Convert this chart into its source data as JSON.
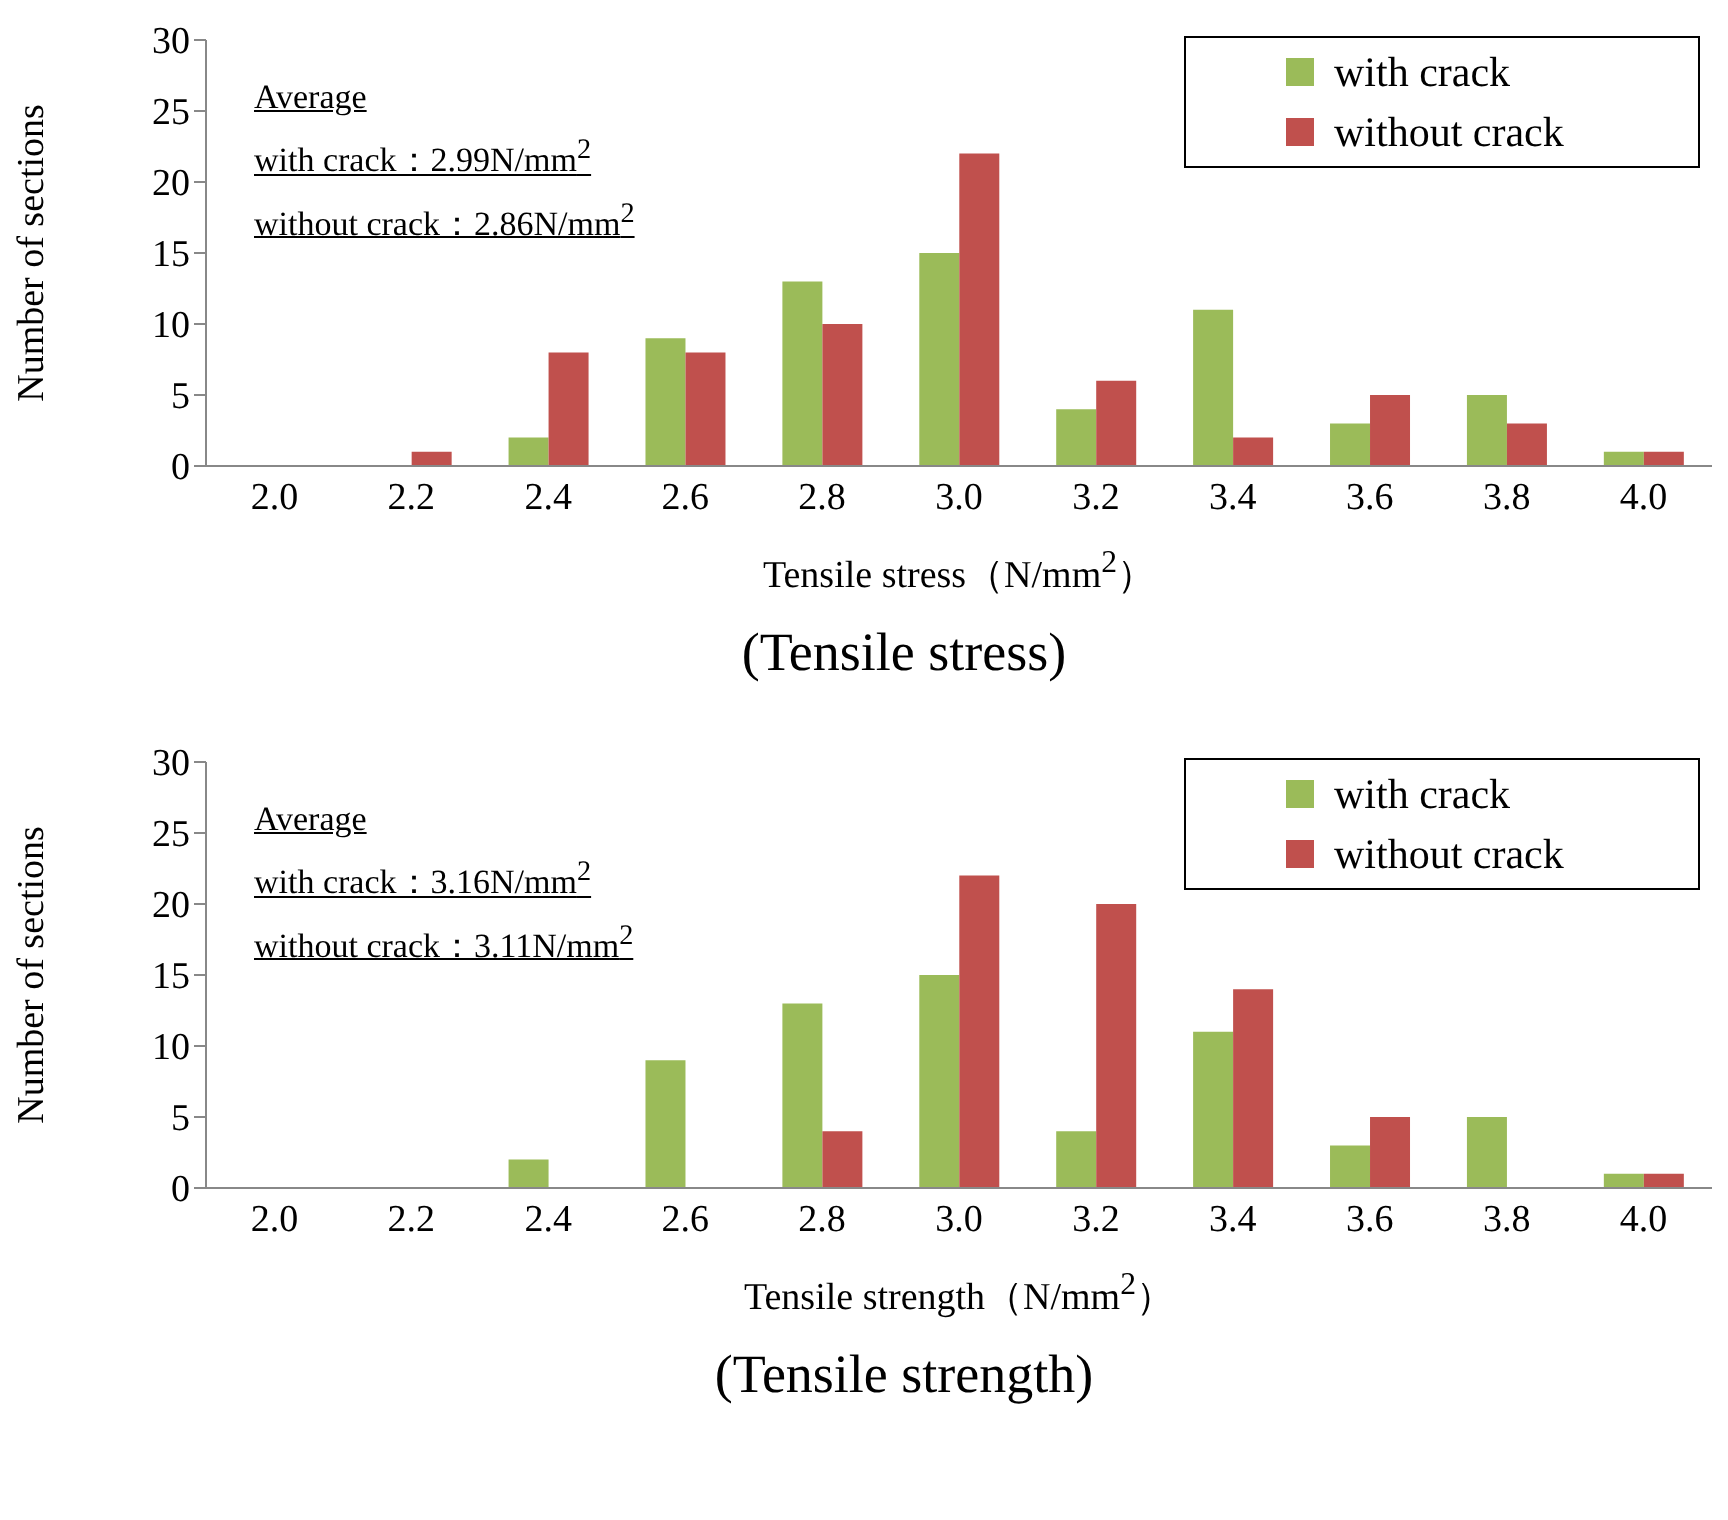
{
  "chart_data": [
    {
      "type": "bar",
      "title": "(Tensile stress)",
      "xlabel": "Tensile stress（N/mm$^{2}$）",
      "ylabel": "Number of sections",
      "categories": [
        "2.0",
        "2.2",
        "2.4",
        "2.6",
        "2.8",
        "3.0",
        "3.2",
        "3.4",
        "3.6",
        "3.8",
        "4.0"
      ],
      "series": [
        {
          "name": "with crack",
          "color": "#9bbb59",
          "values": [
            0,
            0,
            2,
            9,
            13,
            15,
            4,
            11,
            3,
            5,
            1
          ]
        },
        {
          "name": "without crack",
          "color": "#c0504d",
          "values": [
            0,
            1,
            8,
            8,
            10,
            22,
            6,
            2,
            5,
            3,
            1
          ]
        }
      ],
      "ylim": [
        0,
        30
      ],
      "yticks": [
        0,
        5,
        10,
        15,
        20,
        25,
        30
      ],
      "legend": "top right",
      "annotations": [
        "Average",
        "with crack：2.99N/mm$^{2}$",
        "without crack：2.86N/mm$^{2}$"
      ]
    },
    {
      "type": "bar",
      "title": "(Tensile strength)",
      "xlabel": "Tensile strength（N/mm$^{2}$）",
      "ylabel": "Number of sections",
      "categories": [
        "2.0",
        "2.2",
        "2.4",
        "2.6",
        "2.8",
        "3.0",
        "3.2",
        "3.4",
        "3.6",
        "3.8",
        "4.0"
      ],
      "series": [
        {
          "name": "with crack",
          "color": "#9bbb59",
          "values": [
            0,
            0,
            2,
            9,
            13,
            15,
            4,
            11,
            3,
            5,
            1
          ]
        },
        {
          "name": "without crack",
          "color": "#c0504d",
          "values": [
            0,
            0,
            0,
            0,
            4,
            22,
            20,
            14,
            5,
            0,
            1
          ]
        }
      ],
      "ylim": [
        0,
        30
      ],
      "yticks": [
        0,
        5,
        10,
        15,
        20,
        25,
        30
      ],
      "legend": "top right",
      "annotations": [
        "Average",
        "with crack：3.16N/mm$^{2}$",
        "without crack：3.11N/mm$^{2}$"
      ]
    }
  ]
}
